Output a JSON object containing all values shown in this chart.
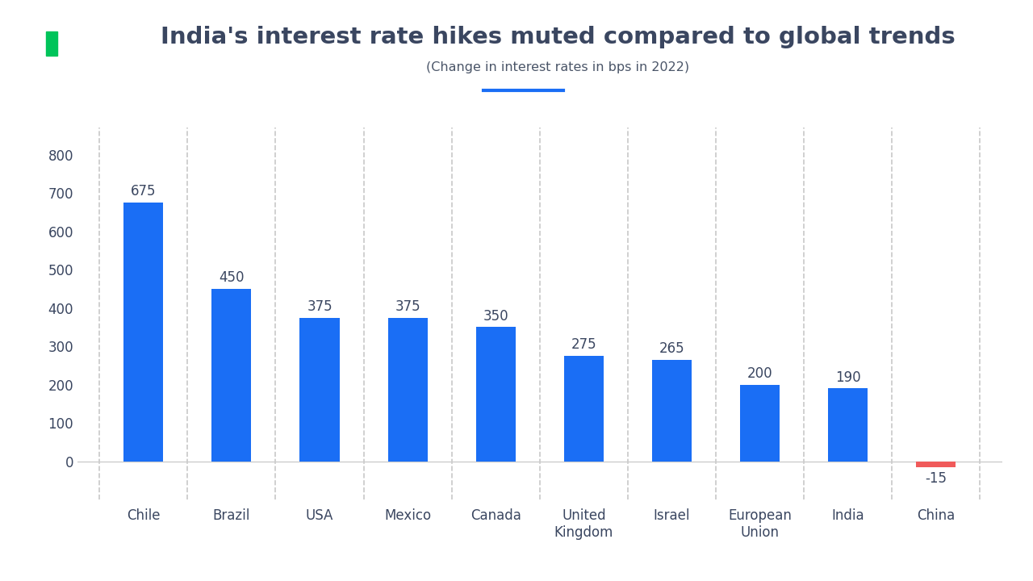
{
  "title": "India's interest rate hikes muted compared to global trends",
  "subtitle": "(Change in interest rates in bps in 2022)",
  "categories": [
    "Chile",
    "Brazil",
    "USA",
    "Mexico",
    "Canada",
    "United\nKingdom",
    "Israel",
    "European\nUnion",
    "India",
    "China"
  ],
  "values": [
    675,
    450,
    375,
    375,
    350,
    275,
    265,
    200,
    190,
    -15
  ],
  "bar_colors": [
    "#1a6ef5",
    "#1a6ef5",
    "#1a6ef5",
    "#1a6ef5",
    "#1a6ef5",
    "#1a6ef5",
    "#1a6ef5",
    "#1a6ef5",
    "#1a6ef5",
    "#f05a5a"
  ],
  "value_labels": [
    "675",
    "450",
    "375",
    "375",
    "350",
    "275",
    "265",
    "200",
    "190",
    "-15"
  ],
  "ylim": [
    -100,
    870
  ],
  "yticks": [
    0,
    100,
    200,
    300,
    400,
    500,
    600,
    700,
    800
  ],
  "title_color": "#3a4660",
  "subtitle_color": "#4a5568",
  "axis_color": "#cccccc",
  "grid_color": "#c8c8c8",
  "bar_label_color": "#3a4660",
  "tick_color": "#3a4660",
  "logo_blue": "#1a6ef5",
  "logo_green": "#00c45a",
  "subtitle_underline_color": "#1a6ef5",
  "background_color": "#ffffff"
}
